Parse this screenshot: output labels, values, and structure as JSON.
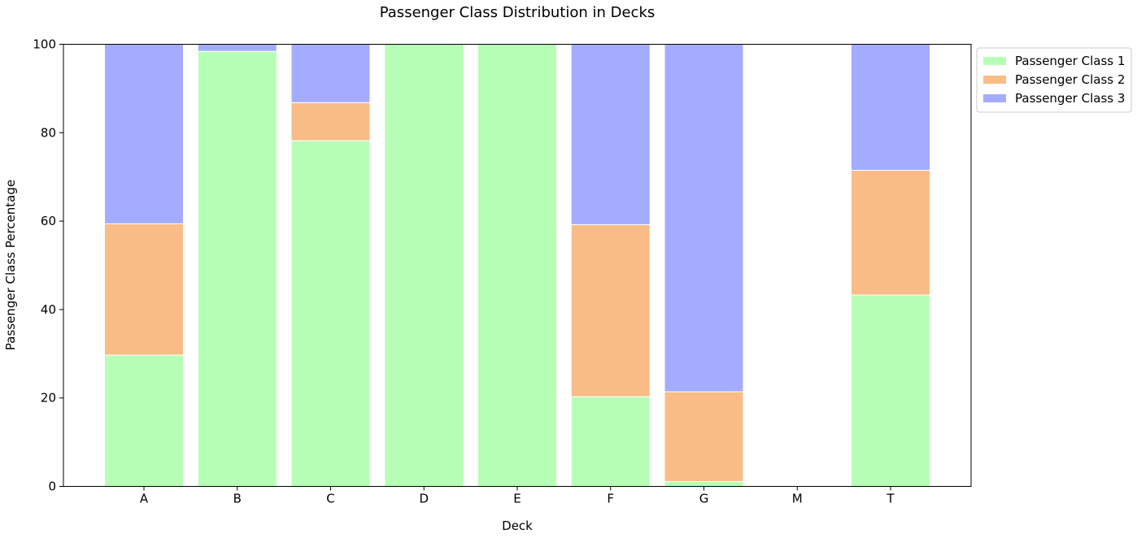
{
  "chart_data": {
    "type": "bar",
    "stacked": true,
    "title": "Passenger Class Distribution in Decks",
    "xlabel": "Deck",
    "ylabel": "Passenger Class Percentage",
    "ylim": [
      0,
      100
    ],
    "yticks": [
      0,
      20,
      40,
      60,
      80,
      100
    ],
    "categories": [
      "A",
      "B",
      "C",
      "D",
      "E",
      "F",
      "G",
      "M",
      "T"
    ],
    "series": [
      {
        "name": "Passenger Class 1",
        "color": "#b7ffb7",
        "values": [
          29.7,
          98.4,
          78.2,
          100,
          100,
          20.3,
          1.1,
          0,
          43.3
        ]
      },
      {
        "name": "Passenger Class 2",
        "color": "#f9bc86",
        "values": [
          29.7,
          0,
          8.6,
          0,
          0,
          38.9,
          20.3,
          0,
          28.2
        ]
      },
      {
        "name": "Passenger Class 3",
        "color": "#a3acff",
        "values": [
          40.6,
          1.6,
          13.2,
          0,
          0,
          40.8,
          78.6,
          0,
          28.5
        ]
      }
    ],
    "legend": "top-right-outside",
    "grid": false
  }
}
